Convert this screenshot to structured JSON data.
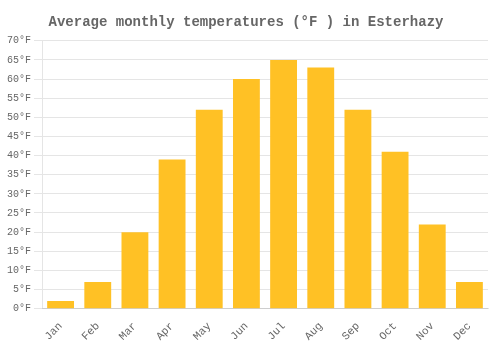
{
  "chart_data": {
    "type": "bar",
    "title": "Average monthly temperatures (°F ) in Esterhazy",
    "categories": [
      "Jan",
      "Feb",
      "Mar",
      "Apr",
      "May",
      "Jun",
      "Jul",
      "Aug",
      "Sep",
      "Oct",
      "Nov",
      "Dec"
    ],
    "values": [
      2,
      7,
      20,
      39,
      52,
      60,
      65,
      63,
      52,
      41,
      22,
      7
    ],
    "color": "#FFC125",
    "ylim": [
      0,
      70
    ],
    "yticks": [
      {
        "value": 0,
        "label": "0°F"
      },
      {
        "value": 5,
        "label": "5°F"
      },
      {
        "value": 10,
        "label": "10°F"
      },
      {
        "value": 15,
        "label": "15°F"
      },
      {
        "value": 20,
        "label": "20°F"
      },
      {
        "value": 25,
        "label": "25°F"
      },
      {
        "value": 30,
        "label": "30°F"
      },
      {
        "value": 35,
        "label": "35°F"
      },
      {
        "value": 40,
        "label": "40°F"
      },
      {
        "value": 45,
        "label": "45°F"
      },
      {
        "value": 50,
        "label": "50°F"
      },
      {
        "value": 55,
        "label": "55°F"
      },
      {
        "value": 60,
        "label": "60°F"
      },
      {
        "value": 65,
        "label": "65°F"
      },
      {
        "value": 70,
        "label": "70°F"
      }
    ],
    "grid": true
  }
}
